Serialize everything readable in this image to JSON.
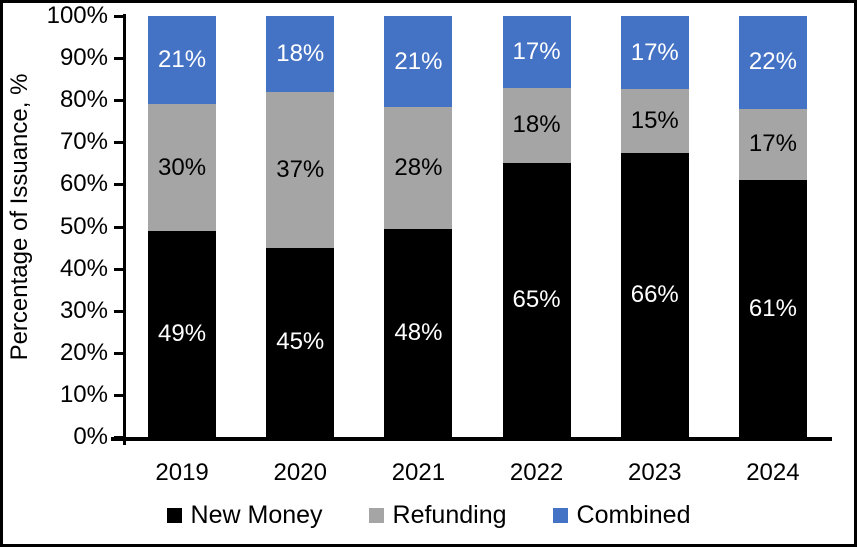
{
  "chart_data": {
    "type": "bar",
    "stacked": true,
    "title": "",
    "ylabel": "Percentage of Issuance, %",
    "xlabel": "",
    "categories": [
      "2019",
      "2020",
      "2021",
      "2022",
      "2023",
      "2024"
    ],
    "series": [
      {
        "name": "New Money",
        "color": "#000000",
        "label_color": "#ffffff",
        "values": [
          49,
          45,
          48,
          65,
          66,
          61
        ]
      },
      {
        "name": "Refunding",
        "color": "#A5A5A5",
        "label_color": "#000000",
        "values": [
          30,
          37,
          28,
          18,
          15,
          17
        ]
      },
      {
        "name": "Combined",
        "color": "#4472C4",
        "label_color": "#ffffff",
        "values": [
          21,
          18,
          21,
          17,
          17,
          22
        ]
      }
    ],
    "value_suffix": "%",
    "y_ticks": [
      "0%",
      "10%",
      "20%",
      "30%",
      "40%",
      "50%",
      "60%",
      "70%",
      "80%",
      "90%",
      "100%"
    ],
    "ylim": [
      0,
      100
    ],
    "grid": false,
    "legend_position": "bottom"
  }
}
